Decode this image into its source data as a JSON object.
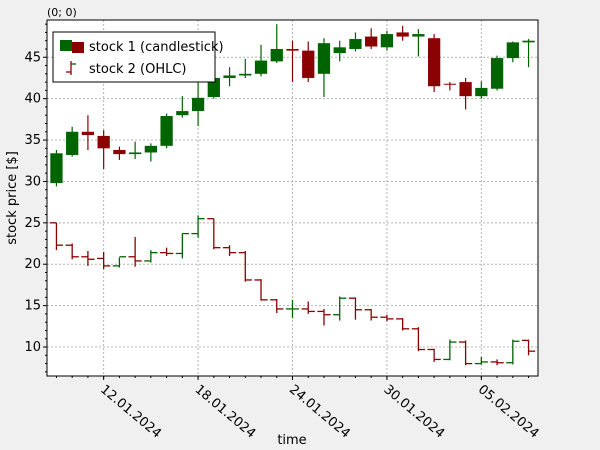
{
  "coordinate_readout": "(0; 0)",
  "colors": {
    "background": "#f0f0f0",
    "grid": "#b4b4b4",
    "stock1_up": "#006400",
    "stock1_down": "#8b0000",
    "stock2_up": "#006400",
    "stock2_down": "#8b0000"
  },
  "chart_data": {
    "type": "candlestick",
    "xlabel": "time",
    "ylabel": "stock price [$]",
    "x_ticks": [
      "12.01.2024",
      "18.01.2024",
      "24.01.2024",
      "30.01.2024",
      "05.02.2024"
    ],
    "x_tick_positions": [
      3,
      9,
      15,
      21,
      27
    ],
    "y_ticks": [
      10,
      15,
      20,
      25,
      30,
      35,
      40,
      45
    ],
    "xlim": [
      -0.6,
      30.6
    ],
    "ylim": [
      6.5,
      49.5
    ],
    "grid": true,
    "legend_position": "top-left",
    "x_dates": [
      "09.01.2024",
      "10.01.2024",
      "11.01.2024",
      "12.01.2024",
      "13.01.2024",
      "14.01.2024",
      "15.01.2024",
      "16.01.2024",
      "17.01.2024",
      "18.01.2024",
      "19.01.2024",
      "20.01.2024",
      "21.01.2024",
      "22.01.2024",
      "23.01.2024",
      "24.01.2024",
      "25.01.2024",
      "26.01.2024",
      "27.01.2024",
      "28.01.2024",
      "29.01.2024",
      "30.01.2024",
      "31.01.2024",
      "01.02.2024",
      "02.02.2024",
      "03.02.2024",
      "04.02.2024",
      "05.02.2024",
      "06.02.2024",
      "07.02.2024",
      "08.02.2024"
    ],
    "series": [
      {
        "name": "stock 1 (candlestick)",
        "style": "candlestick",
        "open": [
          29.8,
          33.2,
          36.0,
          35.5,
          33.8,
          33.3,
          33.5,
          34.3,
          38.0,
          38.5,
          40.2,
          42.5,
          42.8,
          43.0,
          44.5,
          46.0,
          45.8,
          43.0,
          45.5,
          46.0,
          47.5,
          46.2,
          48.0,
          47.5,
          47.3,
          41.8,
          42.0,
          40.3,
          41.2,
          44.9,
          46.8
        ],
        "close": [
          33.4,
          36.0,
          35.6,
          34.0,
          33.3,
          33.5,
          34.3,
          37.9,
          38.5,
          40.1,
          42.5,
          42.8,
          43.0,
          44.6,
          46.0,
          45.8,
          42.5,
          46.7,
          46.2,
          47.2,
          46.3,
          47.8,
          47.5,
          47.8,
          41.5,
          41.7,
          40.3,
          41.3,
          44.9,
          46.8,
          47.0
        ],
        "high": [
          33.8,
          36.6,
          38.0,
          36.2,
          34.2,
          34.8,
          34.6,
          38.2,
          40.3,
          42.0,
          44.0,
          43.8,
          44.8,
          46.5,
          49.0,
          47.0,
          46.9,
          47.3,
          47.0,
          48.0,
          48.5,
          48.2,
          48.8,
          48.4,
          47.8,
          42.0,
          42.5,
          42.1,
          45.2,
          46.9,
          47.2
        ],
        "low": [
          29.4,
          33.0,
          33.8,
          31.5,
          32.6,
          32.7,
          32.4,
          34.0,
          37.7,
          36.7,
          40.0,
          41.5,
          42.5,
          42.7,
          44.3,
          42.0,
          42.0,
          40.2,
          44.5,
          45.7,
          46.0,
          45.8,
          47.0,
          45.1,
          40.8,
          41.0,
          38.7,
          40.0,
          41.0,
          44.4,
          43.8
        ]
      },
      {
        "name": "stock 2 (OHLC)",
        "style": "ohlc",
        "open": [
          25.0,
          22.3,
          20.9,
          20.7,
          19.8,
          20.9,
          20.4,
          21.4,
          21.3,
          23.7,
          25.5,
          22.0,
          21.4,
          18.1,
          15.7,
          14.6,
          14.6,
          14.3,
          13.9,
          15.9,
          14.5,
          13.6,
          13.4,
          12.2,
          9.7,
          8.5,
          10.6,
          8.0,
          8.2,
          8.1,
          10.8
        ],
        "close": [
          22.3,
          20.9,
          20.6,
          19.8,
          20.9,
          20.4,
          21.4,
          21.3,
          23.7,
          25.5,
          22.0,
          21.4,
          18.1,
          15.7,
          14.6,
          14.6,
          14.3,
          13.9,
          15.9,
          14.5,
          13.6,
          13.4,
          12.2,
          9.7,
          8.5,
          10.6,
          8.0,
          8.2,
          8.1,
          10.7,
          9.5
        ],
        "high": [
          25.0,
          22.5,
          21.6,
          21.5,
          20.8,
          23.3,
          21.7,
          22.0,
          23.7,
          25.9,
          25.5,
          22.3,
          21.6,
          18.2,
          15.8,
          15.7,
          15.5,
          14.6,
          16.1,
          16.0,
          14.6,
          13.9,
          13.5,
          12.4,
          9.8,
          10.9,
          10.8,
          8.8,
          8.5,
          10.9,
          10.9
        ],
        "low": [
          21.7,
          20.6,
          19.8,
          19.4,
          19.6,
          19.7,
          20.2,
          21.0,
          20.7,
          23.2,
          21.8,
          21.0,
          17.9,
          15.6,
          14.1,
          13.5,
          14.0,
          12.6,
          13.2,
          13.3,
          13.2,
          13.1,
          12.0,
          9.5,
          8.2,
          8.4,
          7.8,
          7.9,
          7.8,
          7.9,
          9.0
        ]
      }
    ]
  }
}
